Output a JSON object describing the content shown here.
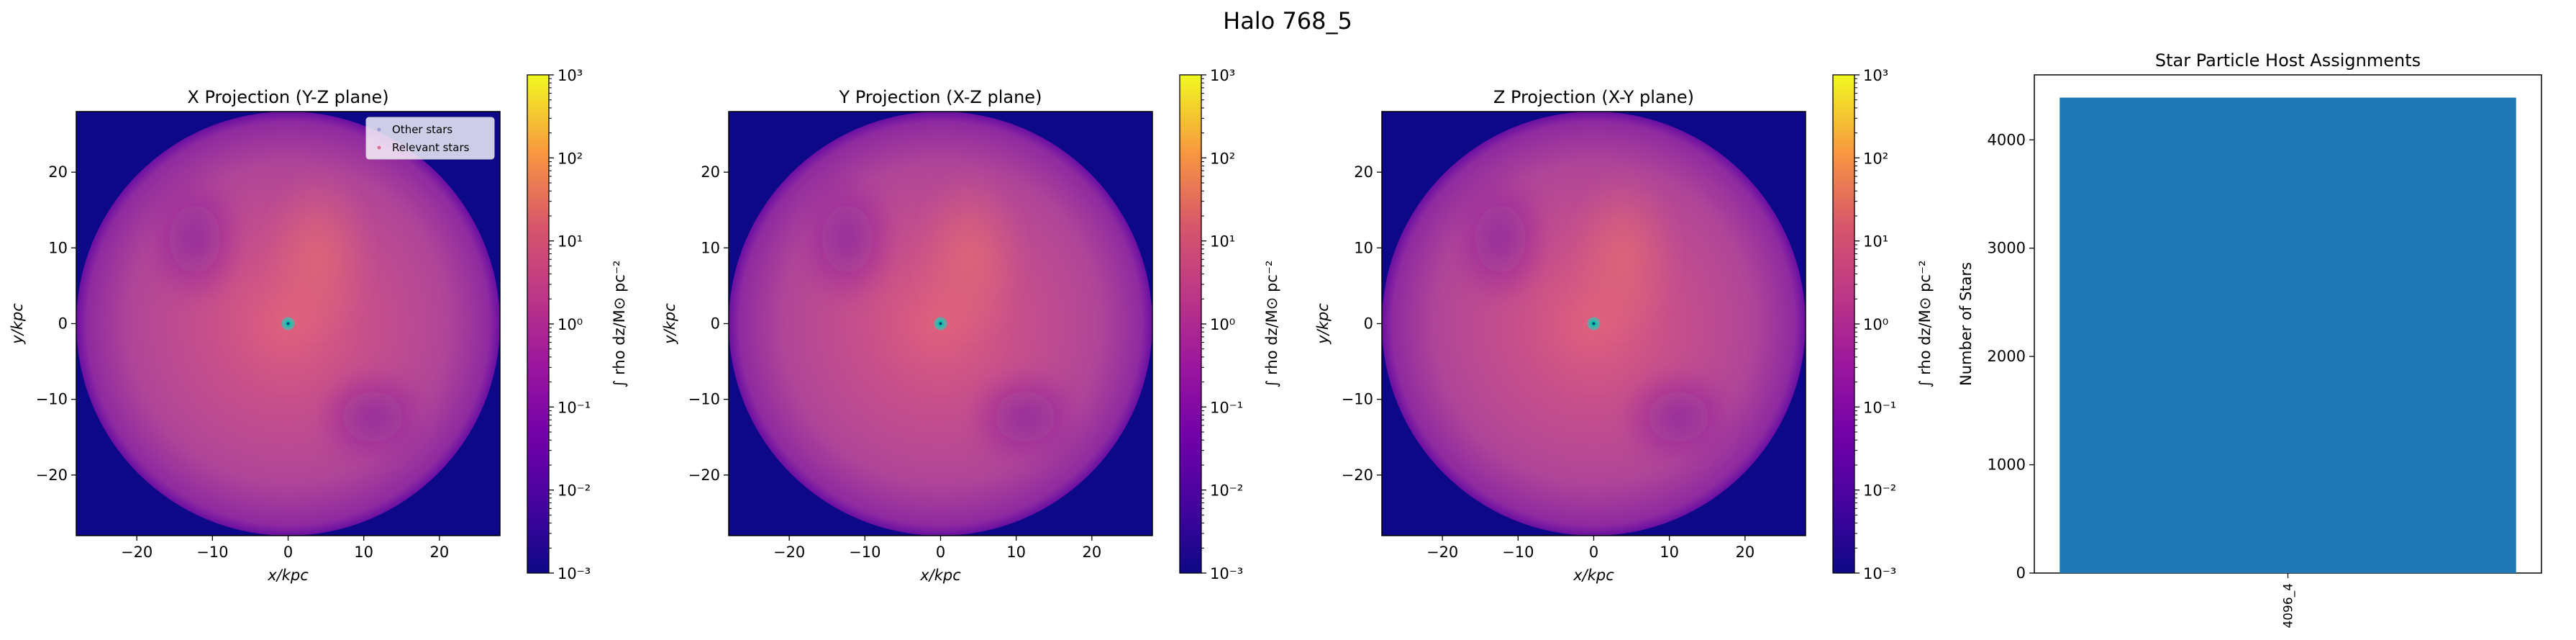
{
  "figure": {
    "suptitle": "Halo 768_5"
  },
  "colors": {
    "background": "#ffffff",
    "disk_outside": "#0d0887",
    "bar": "#1f77b4",
    "stars_marker": "#00e0c8"
  },
  "chart_data": [
    {
      "type": "heatmap",
      "title": "X Projection (Y-Z plane)",
      "xlabel": "x/kpc",
      "ylabel": "y/kpc",
      "xlim": [
        -28,
        28
      ],
      "ylim": [
        -28,
        28
      ],
      "xticks": [
        -20,
        -10,
        0,
        10,
        20
      ],
      "yticks": [
        -20,
        -10,
        0,
        10,
        20
      ],
      "xtick_labels": [
        "−20",
        "−10",
        "0",
        "10",
        "20"
      ],
      "ytick_labels": [
        "−20",
        "−10",
        "0",
        "10",
        "20"
      ],
      "colormap": "plasma",
      "colorbar": {
        "label": "∫ rho dz/M⊙ pc⁻²",
        "scale": "log",
        "range": [
          0.001,
          1000
        ],
        "ticks": [
          "10⁻³",
          "10⁻²",
          "10⁻¹",
          "10⁰",
          "10¹",
          "10²",
          "10³"
        ]
      },
      "legend": {
        "placement": "upper right",
        "entries": [
          "Other stars",
          "Relevant stars"
        ]
      },
      "disk_radius": 28,
      "stars_center": [
        0,
        0
      ]
    },
    {
      "type": "heatmap",
      "title": "Y Projection (X-Z plane)",
      "xlabel": "x/kpc",
      "ylabel": "y/kpc",
      "xlim": [
        -28,
        28
      ],
      "ylim": [
        -28,
        28
      ],
      "xticks": [
        -20,
        -10,
        0,
        10,
        20
      ],
      "yticks": [
        -20,
        -10,
        0,
        10,
        20
      ],
      "xtick_labels": [
        "−20",
        "−10",
        "0",
        "10",
        "20"
      ],
      "ytick_labels": [
        "−20",
        "−10",
        "0",
        "10",
        "20"
      ],
      "colormap": "plasma",
      "colorbar": {
        "label": "∫ rho dz/M⊙ pc⁻²",
        "scale": "log",
        "range": [
          0.001,
          1000
        ],
        "ticks": [
          "10⁻³",
          "10⁻²",
          "10⁻¹",
          "10⁰",
          "10¹",
          "10²",
          "10³"
        ]
      },
      "disk_radius": 28,
      "stars_center": [
        0,
        0
      ]
    },
    {
      "type": "heatmap",
      "title": "Z Projection (X-Y plane)",
      "xlabel": "x/kpc",
      "ylabel": "y/kpc",
      "xlim": [
        -28,
        28
      ],
      "ylim": [
        -28,
        28
      ],
      "xticks": [
        -20,
        -10,
        0,
        10,
        20
      ],
      "yticks": [
        -20,
        -10,
        0,
        10,
        20
      ],
      "xtick_labels": [
        "−20",
        "−10",
        "0",
        "10",
        "20"
      ],
      "ytick_labels": [
        "−20",
        "−10",
        "0",
        "10",
        "20"
      ],
      "colormap": "plasma",
      "colorbar": {
        "label": "∫ rho dz/M⊙ pc⁻²",
        "scale": "log",
        "range": [
          0.001,
          1000
        ],
        "ticks": [
          "10⁻³",
          "10⁻²",
          "10⁻¹",
          "10⁰",
          "10¹",
          "10²",
          "10³"
        ]
      },
      "disk_radius": 28,
      "stars_center": [
        0,
        0
      ]
    },
    {
      "type": "bar",
      "title": "Star Particle Host Assignments",
      "xlabel": "",
      "ylabel": "Number of Stars",
      "categories": [
        "4096_4"
      ],
      "values": [
        4390
      ],
      "ylim": [
        0,
        4600
      ],
      "yticks": [
        0,
        1000,
        2000,
        3000,
        4000
      ]
    }
  ]
}
